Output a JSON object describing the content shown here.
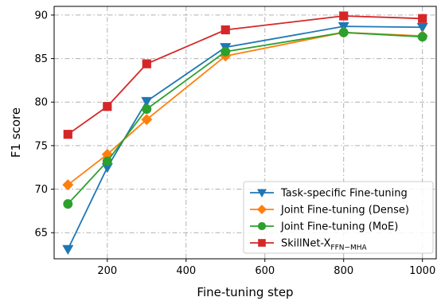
{
  "chart_data": {
    "type": "line",
    "xlabel": "Fine-tuning step",
    "ylabel": "F1 score",
    "xlim": [
      65,
      1035
    ],
    "ylim": [
      62,
      91
    ],
    "xticks": [
      200,
      400,
      600,
      800,
      1000
    ],
    "yticks": [
      65,
      70,
      75,
      80,
      85,
      90
    ],
    "grid": true,
    "legend_position": "lower-right",
    "x": [
      100,
      200,
      300,
      500,
      800,
      1000
    ],
    "series": [
      {
        "name": "Task-specific Fine-tuning",
        "name_parts": {
          "base": "Task-specific Fine-tuning",
          "sub": ""
        },
        "color": "#1f77b4",
        "marker": "triangle-down",
        "values": [
          63.1,
          72.5,
          80.1,
          86.3,
          88.7,
          88.6
        ]
      },
      {
        "name": "Joint Fine-tuning (Dense)",
        "name_parts": {
          "base": "Joint Fine-tuning (Dense)",
          "sub": ""
        },
        "color": "#ff7f0e",
        "marker": "diamond",
        "values": [
          70.5,
          74.0,
          78.0,
          85.3,
          88.0,
          87.6
        ]
      },
      {
        "name": "Joint Fine-tuning (MoE)",
        "name_parts": {
          "base": "Joint Fine-tuning (MoE)",
          "sub": ""
        },
        "color": "#2ca02c",
        "marker": "circle",
        "values": [
          68.3,
          73.2,
          79.2,
          85.8,
          88.0,
          87.5
        ]
      },
      {
        "name": "SkillNet-X FFN−MHA",
        "name_parts": {
          "base": "SkillNet-X",
          "sub": "FFN−MHA"
        },
        "color": "#d62728",
        "marker": "square",
        "values": [
          76.3,
          79.5,
          84.4,
          88.3,
          89.9,
          89.6
        ]
      }
    ]
  }
}
